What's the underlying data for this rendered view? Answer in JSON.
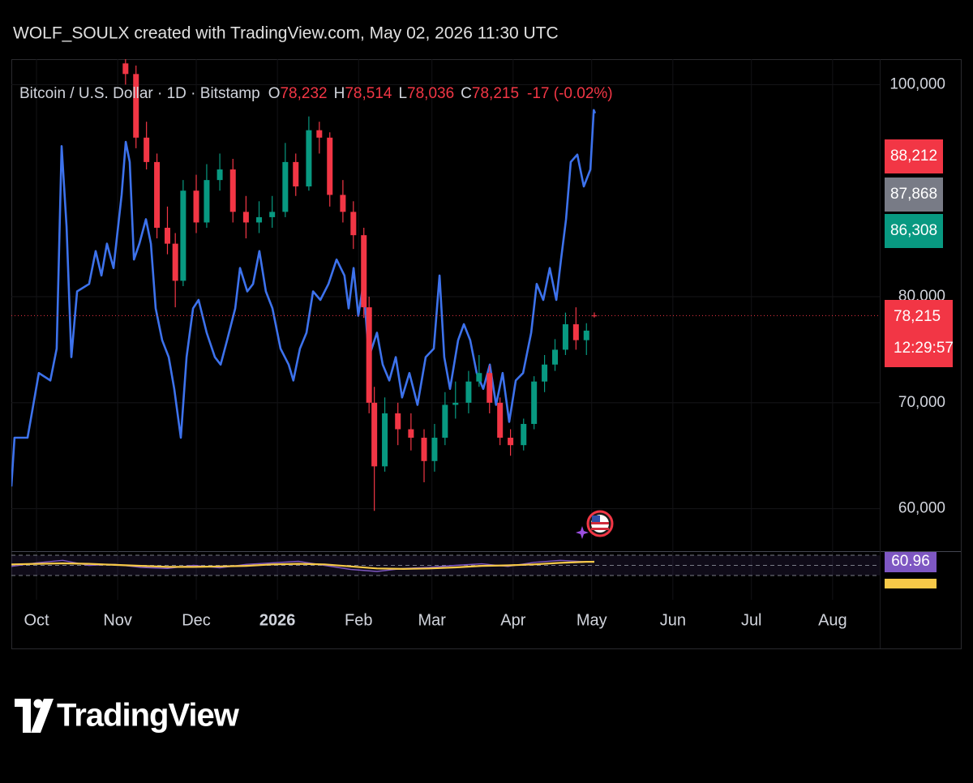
{
  "header": "WOLF_SOULX created with TradingView.com, May 02, 2026 11:30 UTC",
  "footer": "TradingView",
  "chart_data": {
    "type": "candlestick",
    "symbol": "Bitcoin / U.S. Dollar · 1D · Bitstamp",
    "ohlc_labels": [
      {
        "key": "O",
        "value": "78,232"
      },
      {
        "key": "H",
        "value": "78,514"
      },
      {
        "key": "L",
        "value": "78,036"
      },
      {
        "key": "C",
        "value": "78,215"
      }
    ],
    "change": "-17 (-0.02%)",
    "up_color": "#089981",
    "down_color": "#f23645",
    "x": [
      34,
      38,
      42,
      46,
      50,
      53,
      56,
      61,
      65,
      70,
      75,
      80,
      85,
      90,
      95,
      99,
      104,
      108,
      112,
      117,
      121,
      125,
      127,
      129,
      133,
      138,
      143,
      148,
      152,
      156,
      160,
      165,
      169,
      173,
      177,
      181,
      186,
      190,
      194,
      198,
      202,
      206,
      210,
      213
    ],
    "open": [
      102000,
      101000,
      95000,
      92700,
      86500,
      85000,
      81500,
      90000,
      87000,
      91000,
      92000,
      88000,
      87000,
      87500,
      88000,
      92700,
      90400,
      95700,
      95000,
      89600,
      88000,
      85800,
      79000,
      70000,
      64000,
      69000,
      67500,
      66700,
      64500,
      66700,
      69800,
      70000,
      72000,
      72800,
      70000,
      66700,
      66000,
      68000,
      72000,
      73600,
      75000,
      77400,
      75900,
      78232
    ],
    "high": [
      102400,
      101800,
      96500,
      93500,
      88500,
      86000,
      91000,
      91500,
      92500,
      93500,
      93000,
      89500,
      89000,
      89500,
      94500,
      93500,
      97000,
      96500,
      95500,
      91000,
      89000,
      86500,
      80000,
      71500,
      70500,
      70000,
      69000,
      67500,
      68000,
      71000,
      72000,
      73000,
      74500,
      73500,
      70500,
      67500,
      68500,
      72500,
      74500,
      76000,
      78500,
      79000,
      77500,
      78514
    ],
    "low": [
      100000,
      94000,
      92000,
      85500,
      84000,
      79000,
      81000,
      86000,
      86500,
      90000,
      87000,
      85500,
      86000,
      86500,
      87500,
      89500,
      90000,
      93500,
      88500,
      87000,
      84500,
      78000,
      69000,
      59800,
      63500,
      66000,
      65500,
      62500,
      63500,
      66000,
      68500,
      69000,
      71500,
      69000,
      66000,
      65000,
      65500,
      67500,
      71000,
      73000,
      74500,
      75000,
      74500,
      78036
    ],
    "close": [
      101000,
      95000,
      92700,
      86500,
      85000,
      81500,
      90000,
      87000,
      91000,
      92000,
      88000,
      87000,
      87500,
      88000,
      92700,
      90400,
      95700,
      95000,
      89600,
      88000,
      85800,
      79000,
      70000,
      64000,
      69000,
      67500,
      66700,
      64500,
      66700,
      69800,
      70000,
      72000,
      72800,
      70000,
      66700,
      66000,
      68000,
      72000,
      73600,
      75000,
      77400,
      75900,
      76800,
      78215
    ],
    "overlays": [
      {
        "type": "line",
        "color": "#3d72ec",
        "x": [
          -9.6,
          -8.4,
          -3.4,
          0.9,
          5.3,
          7.7,
          9.6,
          11.5,
          13.3,
          15.5,
          20.1,
          22.6,
          24.8,
          26.9,
          29.4,
          32.5,
          34.1,
          35.6,
          37.2,
          39.3,
          41.8,
          43.7,
          45.5,
          48.0,
          50.5,
          52.6,
          55.1,
          57.3,
          59.8,
          61.9,
          65.0,
          68.1,
          70.3,
          72.8,
          75.9,
          77.7,
          80.5,
          82.7,
          85.1,
          87.6,
          90.1,
          93.2,
          96.3,
          98.1,
          100.6,
          103.1,
          105.6,
          108.4,
          111.5,
          114.6,
          117.6,
          119.2,
          121.1,
          122.9,
          124.8,
          126.9,
          130.0,
          132.2,
          134.7,
          137.2,
          139.6,
          142.4,
          145.5,
          148.6,
          151.7,
          153.9,
          155.7,
          157.9,
          161.0,
          163.2,
          165.6,
          168.1,
          170.6,
          173.1,
          175.5,
          178.0,
          180.5,
          183.0,
          185.8,
          188.9,
          191.0,
          193.5,
          196.0,
          198.5,
          200.3,
          202.2,
          204.0,
          206.5,
          209.0,
          211.5,
          212.8,
          213.3
        ],
        "values": [
          62100,
          66700,
          66700,
          72800,
          72100,
          75100,
          94200,
          86600,
          74300,
          80500,
          81200,
          84300,
          82000,
          85000,
          82700,
          89600,
          94600,
          92700,
          83500,
          85000,
          87300,
          85000,
          78900,
          75900,
          74300,
          71300,
          66700,
          74300,
          78900,
          79700,
          76600,
          74300,
          73600,
          75900,
          78900,
          82700,
          80500,
          81200,
          84300,
          80500,
          78900,
          75100,
          73600,
          72100,
          75100,
          76600,
          80500,
          79700,
          81200,
          83500,
          82000,
          78900,
          82700,
          78200,
          81200,
          74300,
          76600,
          73600,
          72100,
          74300,
          70500,
          72800,
          69800,
          74300,
          75100,
          82000,
          74300,
          71300,
          75900,
          77400,
          75900,
          72800,
          71300,
          73600,
          69800,
          72800,
          68200,
          72100,
          72800,
          76600,
          81200,
          79700,
          82700,
          79700,
          83500,
          87300,
          92700,
          93400,
          90400,
          92000,
          97600,
          97300
        ]
      }
    ],
    "ylim": [
      56000,
      102400
    ],
    "yticks": [
      {
        "value": 60000,
        "label": "60,000"
      },
      {
        "value": 70000,
        "label": "70,000"
      },
      {
        "value": 80000,
        "label": "80,000"
      },
      {
        "value": 100000,
        "label": "100,000"
      }
    ],
    "xlim": [
      -9.6,
      322
    ],
    "xticks": [
      {
        "value": 0,
        "label": "Oct"
      },
      {
        "value": 31,
        "label": "Nov"
      },
      {
        "value": 61,
        "label": "Dec"
      },
      {
        "value": 92,
        "label": "2026",
        "bold": true
      },
      {
        "value": 123,
        "label": "Feb"
      },
      {
        "value": 151,
        "label": "Mar"
      },
      {
        "value": 182,
        "label": "Apr"
      },
      {
        "value": 212,
        "label": "May"
      },
      {
        "value": 243,
        "label": "Jun"
      },
      {
        "value": 273,
        "label": "Jul"
      },
      {
        "value": 304,
        "label": "Aug"
      }
    ],
    "grid": true,
    "price_labels": [
      {
        "text": "88,212",
        "color": "#f23645"
      },
      {
        "text": "87,868",
        "color": "#787b86"
      },
      {
        "text": "86,308",
        "color": "#089981"
      }
    ],
    "last_price": {
      "text": "78,215",
      "countdown": "12:29:57",
      "color": "#f23645"
    },
    "indicator": {
      "type": "line",
      "ylim": [
        4.4,
        78
      ],
      "levels": [
        70,
        50,
        30
      ],
      "x": [
        -9.6,
        0,
        10,
        20,
        30,
        40,
        50,
        60,
        70,
        80,
        90,
        100,
        110,
        120,
        130,
        140,
        150,
        160,
        170,
        180,
        190,
        200,
        210,
        213
      ],
      "series": [
        {
          "color": "#7e57c2",
          "values": [
            48,
            55,
            60,
            50,
            52,
            46,
            44,
            50,
            45,
            52,
            55,
            58,
            50,
            42,
            38,
            44,
            46,
            50,
            53,
            48,
            56,
            60,
            57,
            58
          ]
        },
        {
          "color": "#f7c948",
          "values": [
            52,
            53,
            54,
            53,
            51,
            49,
            47,
            47,
            48,
            49,
            52,
            53,
            52,
            48,
            44,
            43,
            44,
            46,
            49,
            50,
            52,
            55,
            57,
            57
          ]
        }
      ],
      "labels": [
        {
          "text": "60.96",
          "color": "#7e57c2"
        }
      ]
    }
  }
}
